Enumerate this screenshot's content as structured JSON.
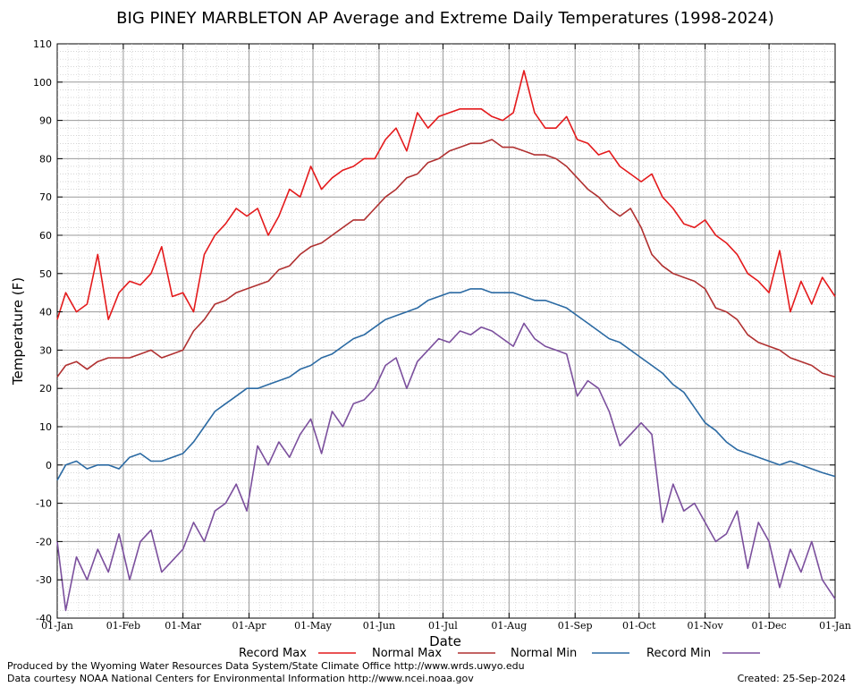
{
  "chart_data": {
    "type": "line",
    "title": "BIG PINEY MARBLETON AP Average and Extreme Daily Temperatures (1998-2024)",
    "xlabel": "Date",
    "ylabel": "Temperature (F)",
    "ylim": [
      -40,
      110
    ],
    "yticks": [
      -40,
      -30,
      -20,
      -10,
      0,
      10,
      20,
      30,
      40,
      50,
      60,
      70,
      80,
      90,
      100,
      110
    ],
    "xticks": [
      {
        "day": 1,
        "label": "01-Jan"
      },
      {
        "day": 32,
        "label": "01-Feb"
      },
      {
        "day": 60,
        "label": "01-Mar"
      },
      {
        "day": 91,
        "label": "01-Apr"
      },
      {
        "day": 121,
        "label": "01-May"
      },
      {
        "day": 152,
        "label": "01-Jun"
      },
      {
        "day": 182,
        "label": "01-Jul"
      },
      {
        "day": 213,
        "label": "01-Aug"
      },
      {
        "day": 244,
        "label": "01-Sep"
      },
      {
        "day": 274,
        "label": "01-Oct"
      },
      {
        "day": 305,
        "label": "01-Nov"
      },
      {
        "day": 335,
        "label": "01-Dec"
      },
      {
        "day": 366,
        "label": "01-Jan"
      }
    ],
    "grid": true,
    "legend_position": "bottom",
    "series": [
      {
        "name": "Record Max",
        "color": "#e41a1c",
        "days": [
          1,
          5,
          10,
          15,
          20,
          25,
          30,
          35,
          40,
          45,
          50,
          55,
          60,
          65,
          70,
          75,
          80,
          85,
          90,
          95,
          100,
          105,
          110,
          115,
          120,
          125,
          130,
          135,
          140,
          145,
          150,
          155,
          160,
          165,
          170,
          175,
          180,
          185,
          190,
          195,
          200,
          205,
          210,
          215,
          220,
          225,
          230,
          235,
          240,
          245,
          250,
          255,
          260,
          265,
          270,
          275,
          280,
          285,
          290,
          295,
          300,
          305,
          310,
          315,
          320,
          325,
          330,
          335,
          340,
          345,
          350,
          355,
          360,
          366
        ],
        "values": [
          38,
          45,
          40,
          42,
          55,
          38,
          45,
          48,
          47,
          50,
          57,
          44,
          45,
          40,
          55,
          60,
          63,
          67,
          65,
          67,
          60,
          65,
          72,
          70,
          78,
          72,
          75,
          77,
          78,
          80,
          80,
          85,
          88,
          82,
          92,
          88,
          91,
          92,
          93,
          93,
          93,
          91,
          90,
          92,
          103,
          92,
          88,
          88,
          91,
          85,
          84,
          81,
          82,
          78,
          76,
          74,
          76,
          70,
          67,
          63,
          62,
          64,
          60,
          58,
          55,
          50,
          48,
          45,
          56,
          40,
          48,
          42,
          49,
          44
        ]
      },
      {
        "name": "Normal Max",
        "color": "#b03030",
        "days": [
          1,
          5,
          10,
          15,
          20,
          25,
          30,
          35,
          40,
          45,
          50,
          55,
          60,
          65,
          70,
          75,
          80,
          85,
          90,
          95,
          100,
          105,
          110,
          115,
          120,
          125,
          130,
          135,
          140,
          145,
          150,
          155,
          160,
          165,
          170,
          175,
          180,
          185,
          190,
          195,
          200,
          205,
          210,
          215,
          220,
          225,
          230,
          235,
          240,
          245,
          250,
          255,
          260,
          265,
          270,
          275,
          280,
          285,
          290,
          295,
          300,
          305,
          310,
          315,
          320,
          325,
          330,
          335,
          340,
          345,
          350,
          355,
          360,
          366
        ],
        "values": [
          23,
          26,
          27,
          25,
          27,
          28,
          28,
          28,
          29,
          30,
          28,
          29,
          30,
          35,
          38,
          42,
          43,
          45,
          46,
          47,
          48,
          51,
          52,
          55,
          57,
          58,
          60,
          62,
          64,
          64,
          67,
          70,
          72,
          75,
          76,
          79,
          80,
          82,
          83,
          84,
          84,
          85,
          83,
          83,
          82,
          81,
          81,
          80,
          78,
          75,
          72,
          70,
          67,
          65,
          67,
          62,
          55,
          52,
          50,
          49,
          48,
          46,
          41,
          40,
          38,
          34,
          32,
          31,
          30,
          28,
          27,
          26,
          24,
          23
        ]
      },
      {
        "name": "Normal Min",
        "color": "#2b6aa3",
        "days": [
          1,
          5,
          10,
          15,
          20,
          25,
          30,
          35,
          40,
          45,
          50,
          55,
          60,
          65,
          70,
          75,
          80,
          85,
          90,
          95,
          100,
          105,
          110,
          115,
          120,
          125,
          130,
          135,
          140,
          145,
          150,
          155,
          160,
          165,
          170,
          175,
          180,
          185,
          190,
          195,
          200,
          205,
          210,
          215,
          220,
          225,
          230,
          235,
          240,
          245,
          250,
          255,
          260,
          265,
          270,
          275,
          280,
          285,
          290,
          295,
          300,
          305,
          310,
          315,
          320,
          325,
          330,
          335,
          340,
          345,
          350,
          355,
          360,
          366
        ],
        "values": [
          -4,
          0,
          1,
          -1,
          0,
          0,
          -1,
          2,
          3,
          1,
          1,
          2,
          3,
          6,
          10,
          14,
          16,
          18,
          20,
          20,
          21,
          22,
          23,
          25,
          26,
          28,
          29,
          31,
          33,
          34,
          36,
          38,
          39,
          40,
          41,
          43,
          44,
          45,
          45,
          46,
          46,
          45,
          45,
          45,
          44,
          43,
          43,
          42,
          41,
          39,
          37,
          35,
          33,
          32,
          30,
          28,
          26,
          24,
          21,
          19,
          15,
          11,
          9,
          6,
          4,
          3,
          2,
          1,
          0,
          1,
          0,
          -1,
          -2,
          -3
        ]
      },
      {
        "name": "Record Min",
        "color": "#7b4f9d",
        "days": [
          1,
          5,
          10,
          15,
          20,
          25,
          30,
          35,
          40,
          45,
          50,
          55,
          60,
          65,
          70,
          75,
          80,
          85,
          90,
          95,
          100,
          105,
          110,
          115,
          120,
          125,
          130,
          135,
          140,
          145,
          150,
          155,
          160,
          165,
          170,
          175,
          180,
          185,
          190,
          195,
          200,
          205,
          210,
          215,
          220,
          225,
          230,
          235,
          240,
          245,
          250,
          255,
          260,
          265,
          270,
          275,
          280,
          285,
          290,
          295,
          300,
          305,
          310,
          315,
          320,
          325,
          330,
          335,
          340,
          345,
          350,
          355,
          360,
          366
        ],
        "values": [
          -20,
          -38,
          -24,
          -30,
          -22,
          -28,
          -18,
          -30,
          -20,
          -17,
          -28,
          -25,
          -22,
          -15,
          -20,
          -12,
          -10,
          -5,
          -12,
          5,
          0,
          6,
          2,
          8,
          12,
          3,
          14,
          10,
          16,
          17,
          20,
          26,
          28,
          20,
          27,
          30,
          33,
          32,
          35,
          34,
          36,
          35,
          33,
          31,
          37,
          33,
          31,
          30,
          29,
          18,
          22,
          20,
          14,
          5,
          8,
          11,
          8,
          -15,
          -5,
          -12,
          -10,
          -15,
          -20,
          -18,
          -12,
          -27,
          -15,
          -20,
          -32,
          -22,
          -28,
          -20,
          -30,
          -35
        ]
      }
    ]
  },
  "footer": {
    "credit_line1": "Produced by the Wyoming Water Resources Data System/State Climate Office http://www.wrds.uwyo.edu",
    "credit_line2": "Data courtesy NOAA National Centers for Environmental Information http://www.ncei.noaa.gov",
    "created": "Created:  25-Sep-2024"
  }
}
